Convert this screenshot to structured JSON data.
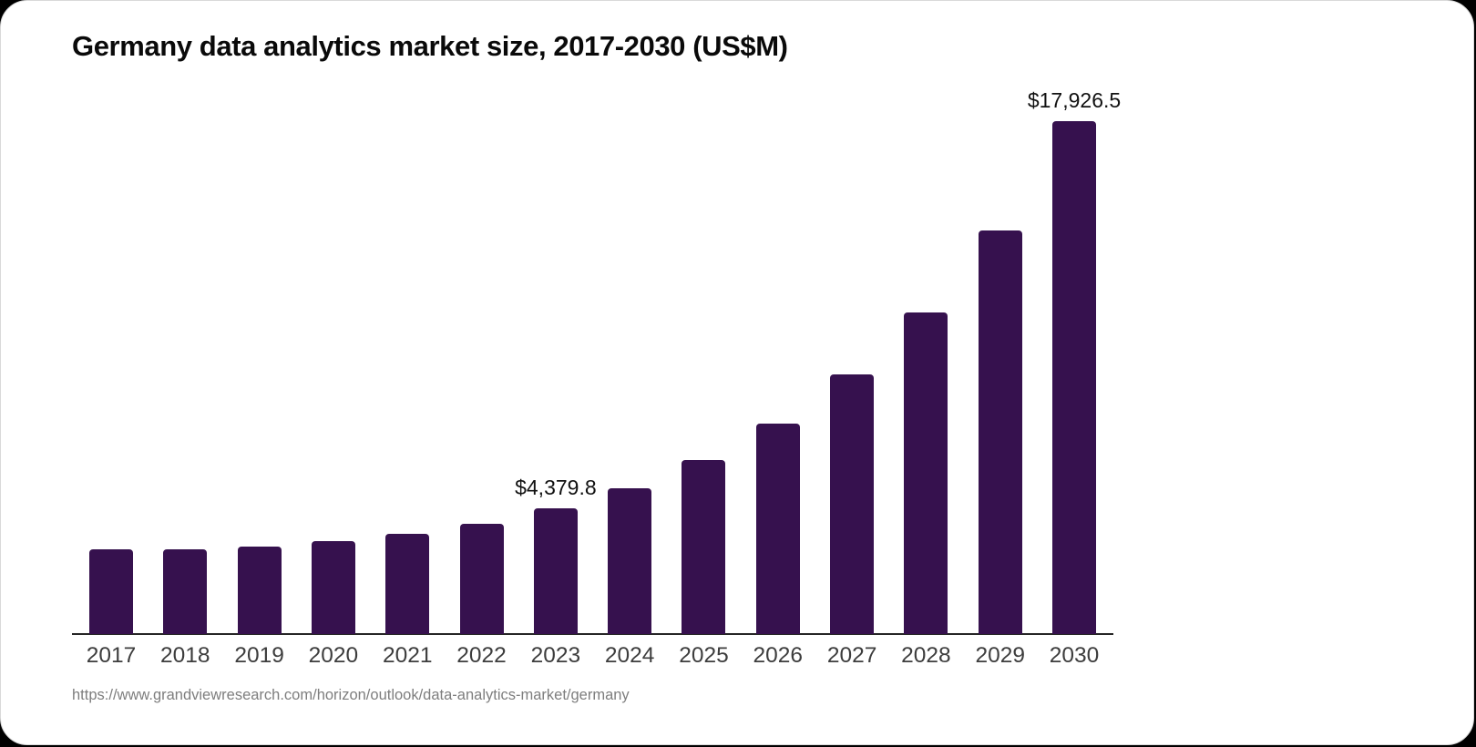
{
  "page": {
    "title": "Germany data analytics market size, 2017-2030 (US$M)",
    "source_url": "https://www.grandviewresearch.com/horizon/outlook/data-analytics-market/germany"
  },
  "chart_data": {
    "type": "bar",
    "title": "Germany data analytics market size, 2017-2030 (US$M)",
    "unit": "US$M",
    "xlabel": "",
    "ylabel": "",
    "categories": [
      "2017",
      "2018",
      "2019",
      "2020",
      "2021",
      "2022",
      "2023",
      "2024",
      "2025",
      "2026",
      "2027",
      "2028",
      "2029",
      "2030"
    ],
    "values": [
      2960,
      2970,
      3055,
      3245,
      3500,
      3840,
      4379.8,
      5090,
      6080,
      7355,
      9070,
      11240,
      14105,
      17926.5
    ],
    "value_labels": {
      "2023": "$4,379.8",
      "2030": "$17,926.5"
    },
    "ylim": [
      0,
      18500
    ],
    "grid": false,
    "legend": false,
    "bar_color": "#36114e",
    "axis_color": "#262626",
    "label_color": "#111111",
    "tick_color": "#3d3d3d"
  }
}
